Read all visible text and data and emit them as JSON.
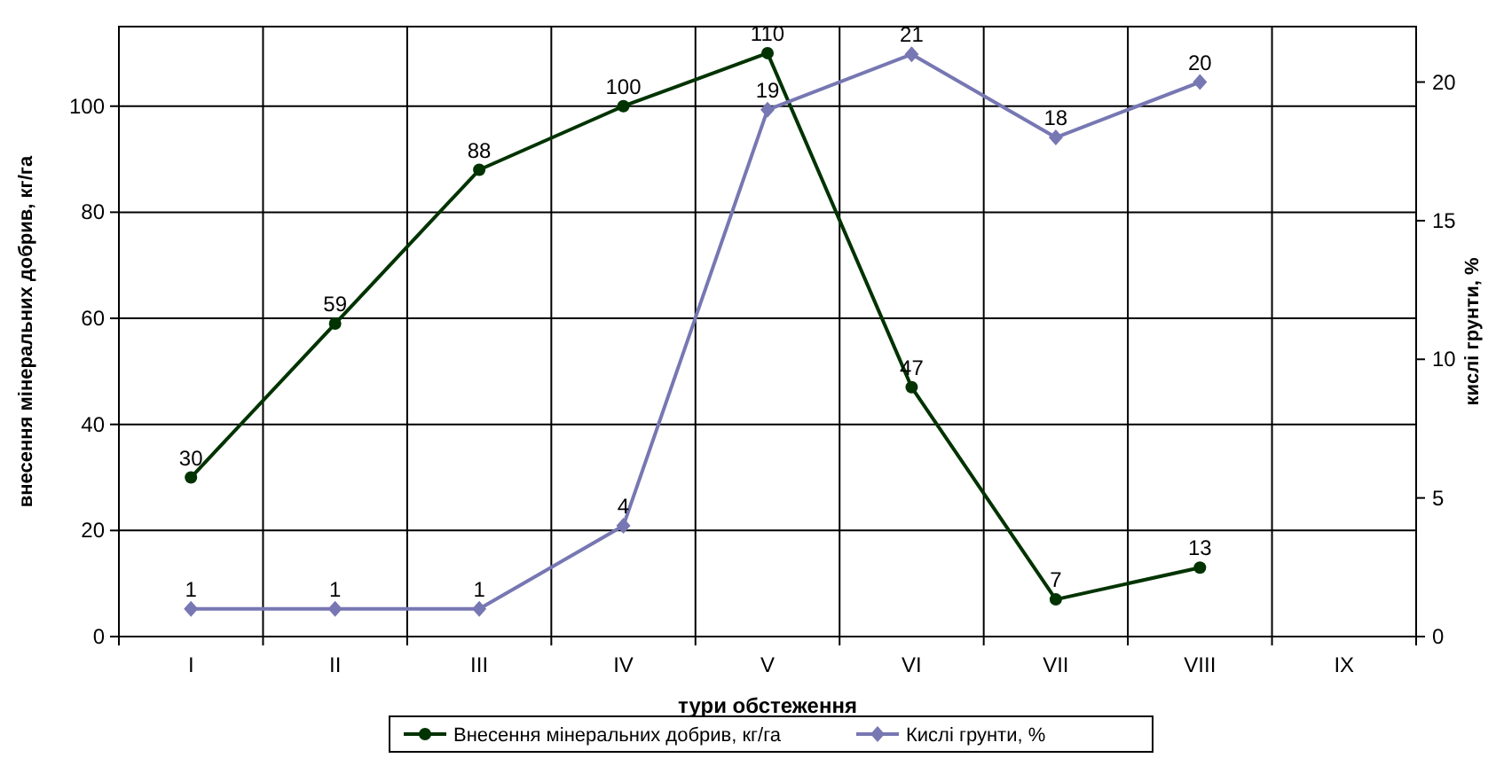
{
  "chart_data": {
    "type": "line",
    "xlabel": "тури обстеження",
    "ylabel": "внесення мінеральних добрив, кг/га",
    "y2label": "кислі грунти, %",
    "categories": [
      "I",
      "II",
      "III",
      "IV",
      "V",
      "VI",
      "VII",
      "VIII",
      "IX"
    ],
    "series": [
      {
        "name": "Внесення мінеральних добрив, кг/га",
        "color": "#003300",
        "marker": "circle",
        "values": [
          30,
          59,
          88,
          100,
          110,
          47,
          7,
          13,
          null
        ]
      },
      {
        "name": "Кислі грунти, %",
        "color": "#7777b3",
        "marker": "diamond",
        "axis": "y2",
        "values": [
          1,
          1,
          1,
          4,
          19,
          21,
          18,
          20,
          null
        ]
      }
    ],
    "ylim": [
      0,
      115
    ],
    "yticks": [
      0,
      20,
      40,
      60,
      80,
      100
    ],
    "y2lim": [
      0,
      22
    ],
    "y2ticks": [
      0,
      5,
      10,
      15,
      20
    ],
    "grid": true,
    "legend": "bottom",
    "data_labels": true
  }
}
